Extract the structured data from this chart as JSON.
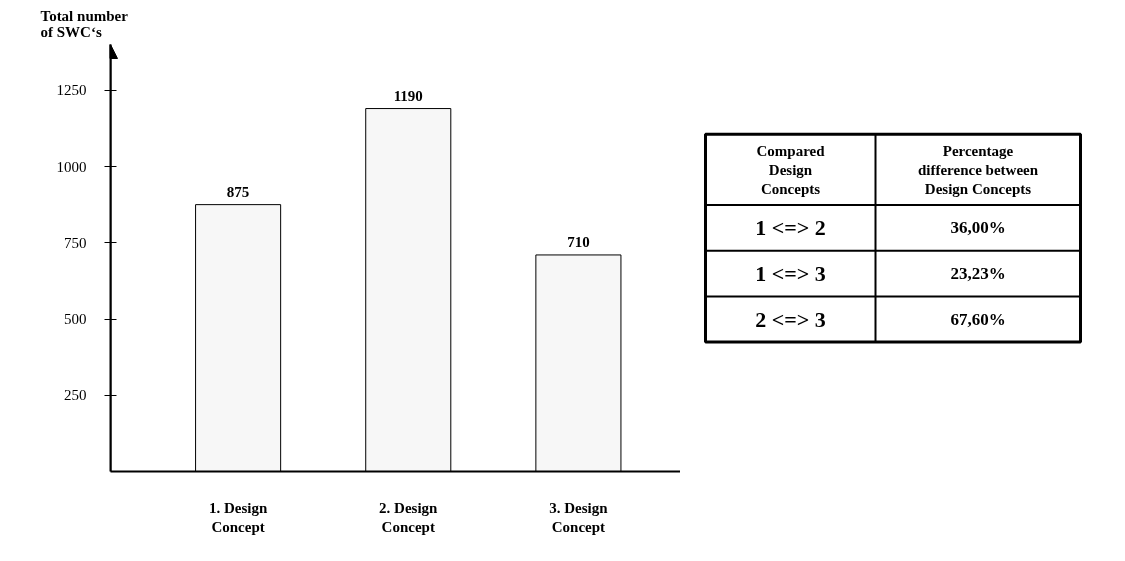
{
  "chart_data": [
    {
      "type": "bar",
      "ylabel": "Total number\nof SWC‘s",
      "categories": [
        "1. Design Concept",
        "2. Design Concept",
        "3. Design Concept"
      ],
      "values": [
        875,
        1190,
        710
      ],
      "color": "#f7f7f7",
      "ylim": [
        0,
        1400
      ],
      "yticks": [
        250,
        500,
        750,
        1000,
        1250
      ],
      "data_labels": true,
      "grid": false
    },
    {
      "type": "other",
      "annotations": [
        "Compared Design Concepts",
        "Percentage difference between Design Concepts",
        "1 <=> 2",
        "36,00%",
        "1 <=> 3",
        "23,23%",
        "2 <=> 3",
        "67,60%"
      ]
    }
  ]
}
